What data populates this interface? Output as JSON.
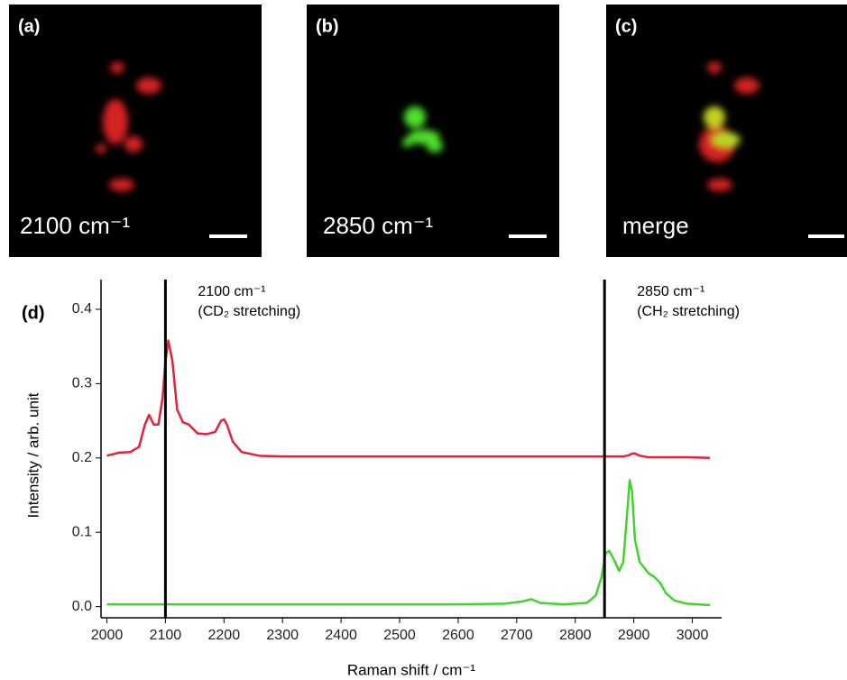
{
  "panels": [
    {
      "label": "(a)",
      "caption": "2100 cm⁻¹"
    },
    {
      "label": "(b)",
      "caption": "2850 cm⁻¹"
    },
    {
      "label": "(c)",
      "caption": "merge"
    }
  ],
  "chart_data": {
    "type": "line",
    "panel_label": "(d)",
    "x_label": "Raman shift / cm⁻¹",
    "y_label": "Intensity / arb. unit",
    "xlim": [
      1990,
      3050
    ],
    "ylim": [
      -0.015,
      0.44
    ],
    "xticks": [
      2000,
      2100,
      2200,
      2300,
      2400,
      2500,
      2600,
      2700,
      2800,
      2900,
      3000
    ],
    "yticks": [
      {
        "value": 0,
        "label": "0.0"
      },
      0.1,
      0.2,
      0.3,
      0.4
    ],
    "markers": [
      {
        "x": 2100,
        "label": "2100 cm⁻¹",
        "note": "(CD₂ stretching)"
      },
      {
        "x": 2850,
        "label": "2850 cm⁻¹",
        "note": "(CH₂ stretching)"
      }
    ],
    "x": [
      2000,
      2020,
      2040,
      2055,
      2065,
      2072,
      2080,
      2088,
      2095,
      2100,
      2105,
      2112,
      2120,
      2130,
      2140,
      2155,
      2170,
      2185,
      2195,
      2200,
      2205,
      2215,
      2230,
      2260,
      2300,
      2400,
      2500,
      2600,
      2680,
      2710,
      2725,
      2740,
      2780,
      2820,
      2835,
      2845,
      2852,
      2858,
      2865,
      2875,
      2882,
      2888,
      2893,
      2897,
      2902,
      2910,
      2925,
      2935,
      2945,
      2955,
      2970,
      2990,
      3030
    ],
    "series": [
      {
        "color": "#e8203a",
        "values": [
          0.203,
          0.207,
          0.208,
          0.215,
          0.245,
          0.258,
          0.245,
          0.245,
          0.28,
          0.33,
          0.358,
          0.33,
          0.265,
          0.248,
          0.245,
          0.233,
          0.232,
          0.235,
          0.25,
          0.252,
          0.245,
          0.222,
          0.208,
          0.203,
          0.202,
          0.202,
          0.202,
          0.202,
          0.202,
          0.202,
          0.202,
          0.202,
          0.202,
          0.202,
          0.202,
          0.202,
          0.202,
          0.202,
          0.202,
          0.202,
          0.202,
          0.203,
          0.204,
          0.206,
          0.206,
          0.203,
          0.201,
          0.201,
          0.201,
          0.201,
          0.201,
          0.201,
          0.2
        ]
      },
      {
        "color": "#3fd62a",
        "values": [
          0.003,
          0.003,
          0.003,
          0.003,
          0.003,
          0.003,
          0.003,
          0.003,
          0.003,
          0.003,
          0.003,
          0.003,
          0.003,
          0.003,
          0.003,
          0.003,
          0.003,
          0.003,
          0.003,
          0.003,
          0.003,
          0.003,
          0.003,
          0.003,
          0.003,
          0.003,
          0.003,
          0.003,
          0.004,
          0.007,
          0.01,
          0.005,
          0.003,
          0.005,
          0.015,
          0.04,
          0.072,
          0.075,
          0.065,
          0.048,
          0.06,
          0.12,
          0.17,
          0.155,
          0.09,
          0.06,
          0.045,
          0.04,
          0.032,
          0.018,
          0.008,
          0.004,
          0.002
        ]
      }
    ]
  }
}
